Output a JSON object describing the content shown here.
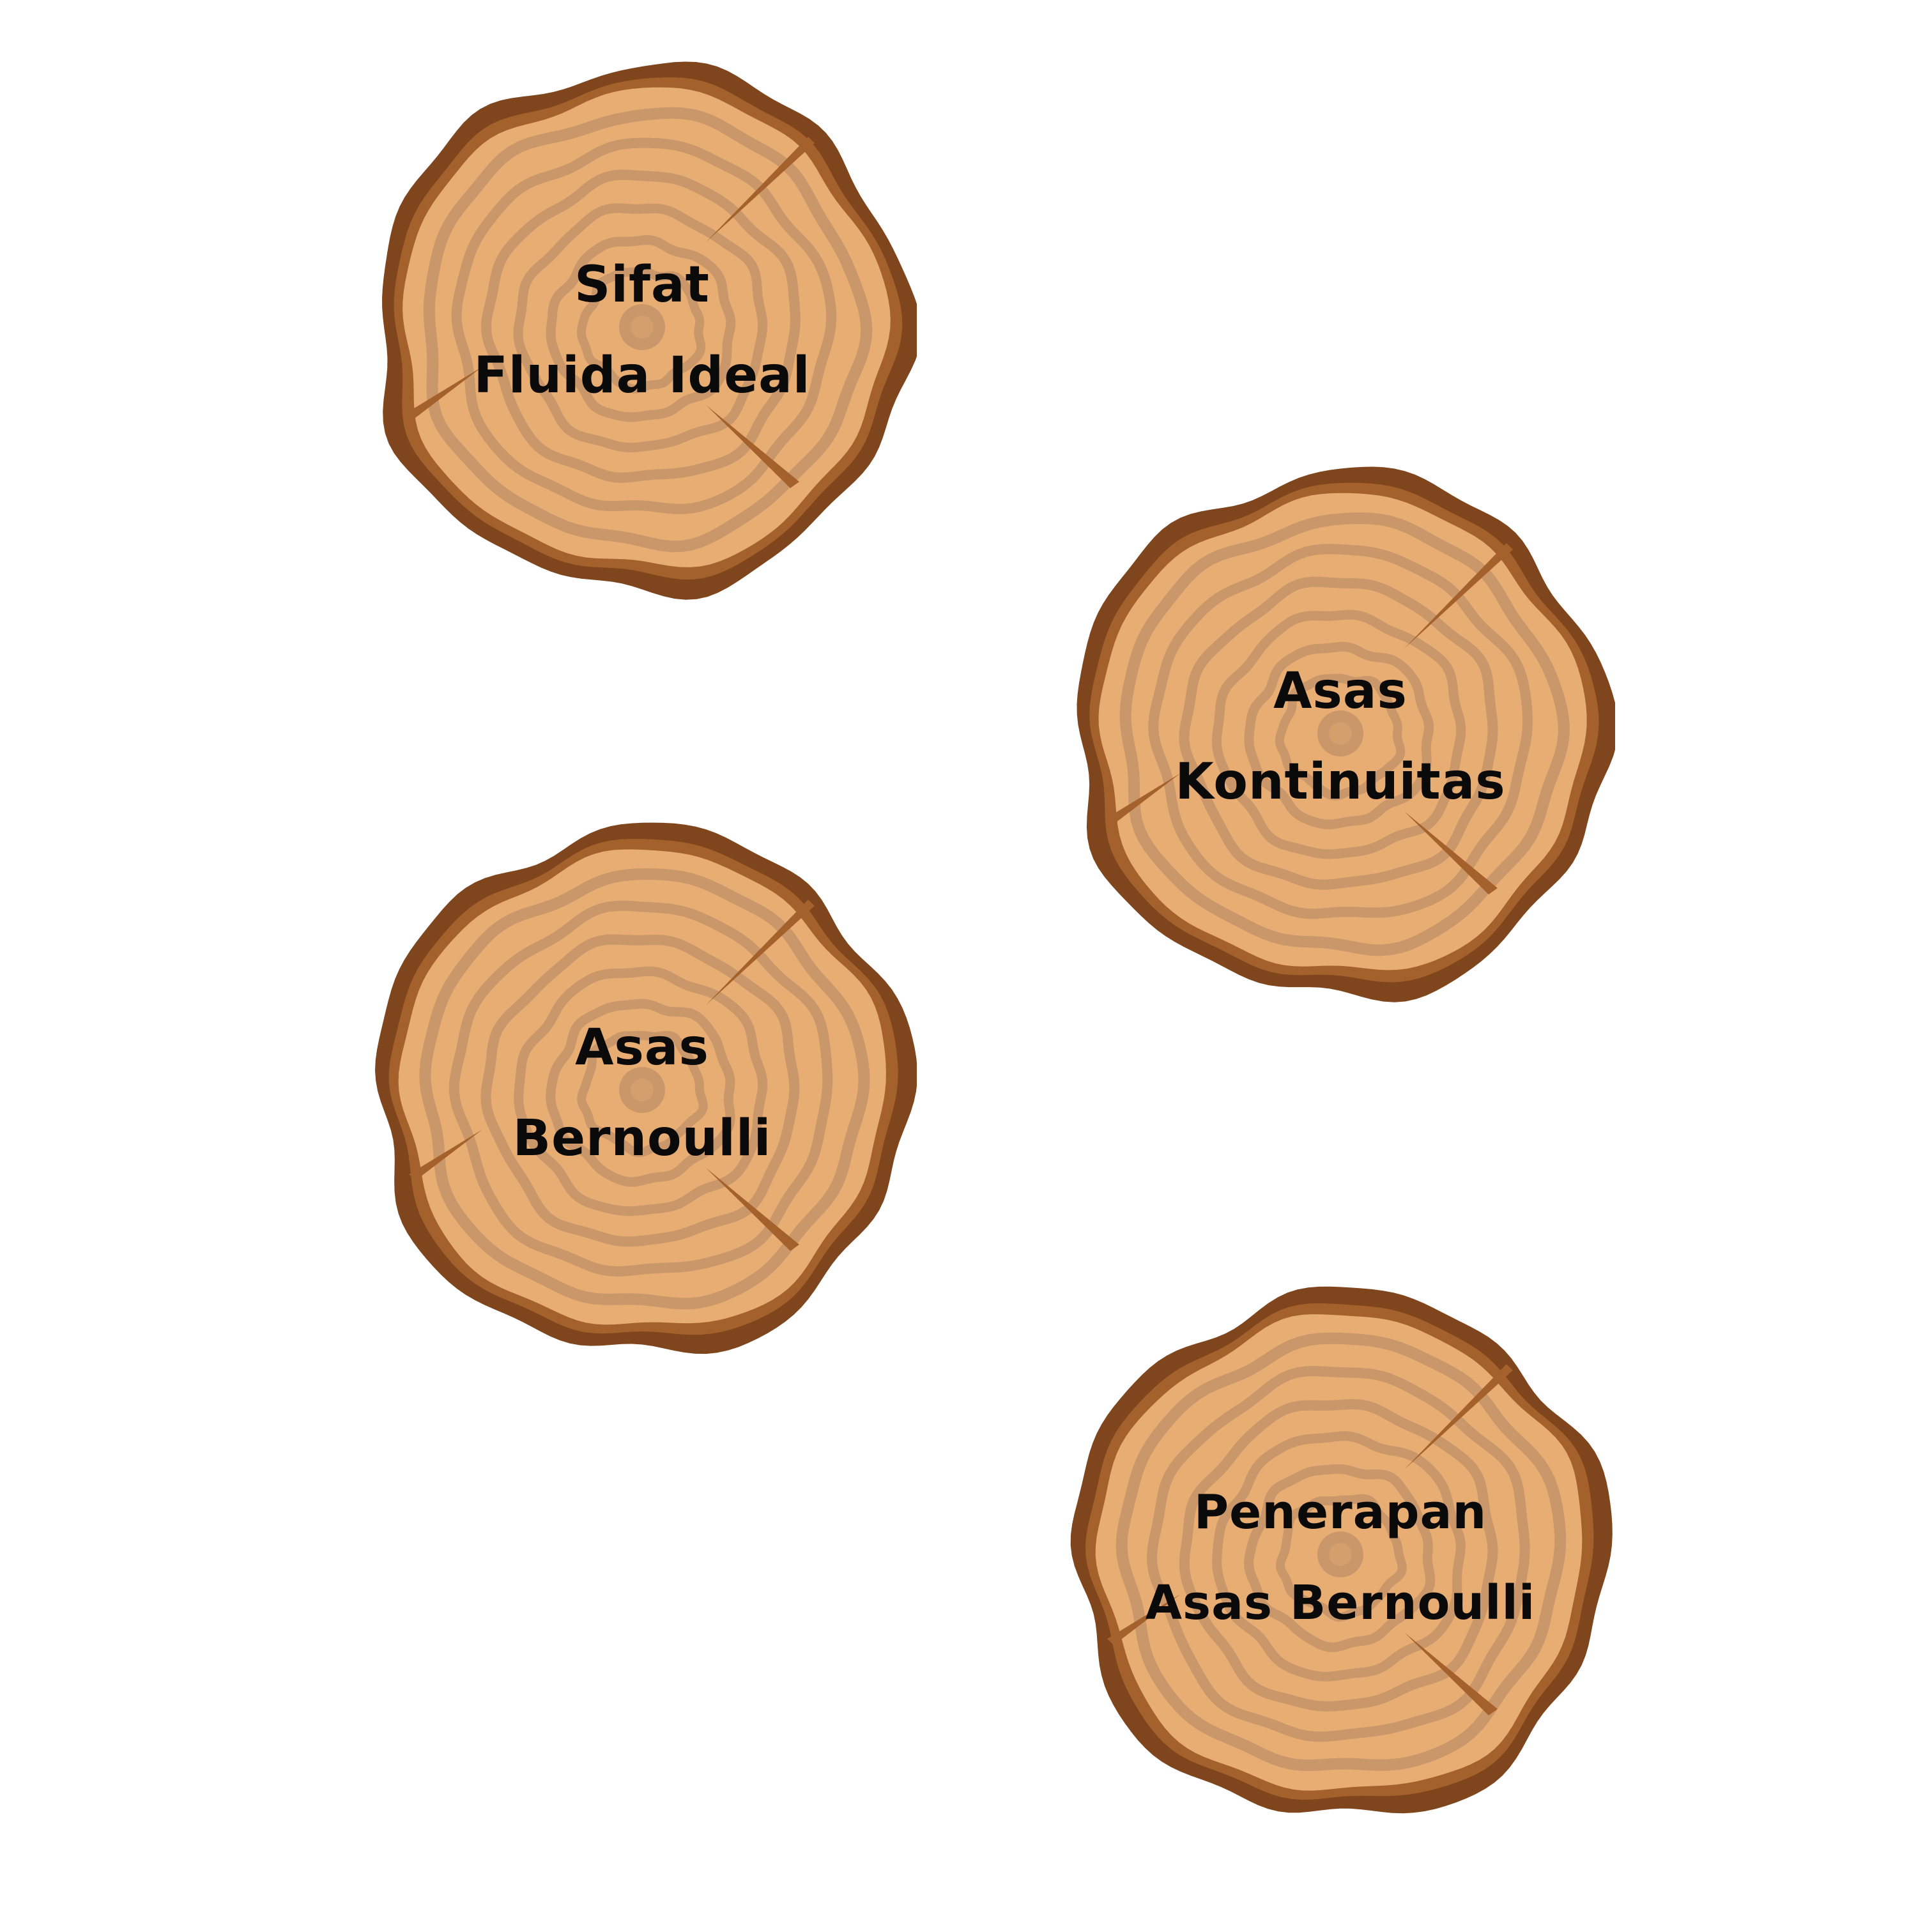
{
  "colors": {
    "bark_dark": "#7f461e",
    "bark_mid": "#a4612c",
    "wood_light": "#e8ad73",
    "ring": "#c9976a",
    "crack": "#a4612c",
    "text": "#0a0a0a",
    "background": "#ffffff"
  },
  "slices": [
    {
      "line1": "Sifat",
      "line2": "Fluida Ideal"
    },
    {
      "line1": "Asas",
      "line2": "Kontinuitas"
    },
    {
      "line1": "Asas",
      "line2": "Bernoulli"
    },
    {
      "line1": "Penerapan",
      "line2": "Asas Bernoulli"
    }
  ]
}
